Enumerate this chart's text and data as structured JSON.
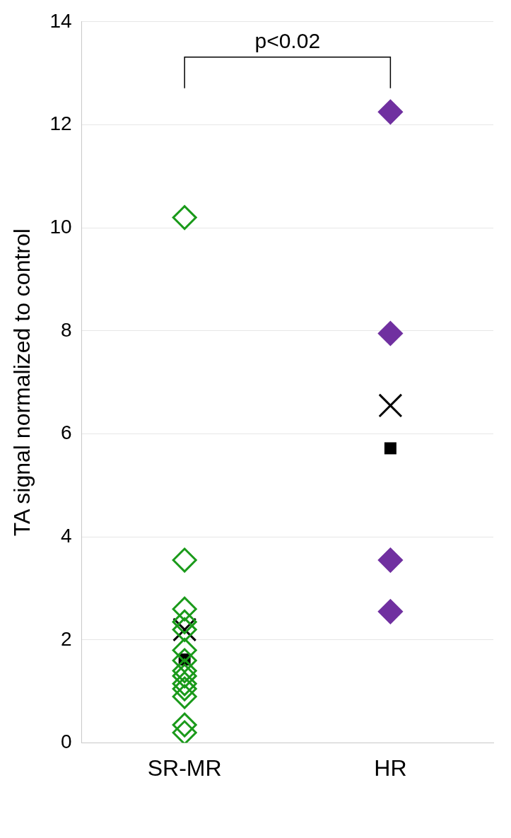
{
  "chart_data": {
    "type": "scatter",
    "categories": [
      "SR-MR",
      "HR"
    ],
    "ylabel": "TA signal normalized to control",
    "ylim": [
      0,
      14
    ],
    "yticks": [
      0,
      2,
      4,
      6,
      8,
      10,
      12,
      14
    ],
    "grid": "y",
    "legend": false,
    "marker": "diamond",
    "annotations": [
      "p<0.02"
    ],
    "series": [
      {
        "color": "#1a9a1a",
        "x": [
          "SR-MR",
          "SR-MR",
          "SR-MR",
          "SR-MR",
          "SR-MR",
          "SR-MR",
          "SR-MR",
          "SR-MR",
          "SR-MR",
          "SR-MR",
          "SR-MR",
          "SR-MR",
          "SR-MR",
          "SR-MR"
        ],
        "values": [
          10.2,
          3.55,
          2.6,
          2.35,
          2.2,
          1.8,
          1.6,
          1.4,
          1.3,
          1.15,
          1.05,
          0.9,
          0.35,
          0.2
        ]
      },
      {
        "color": "#7030a0",
        "x": [
          "HR",
          "HR",
          "HR",
          "HR"
        ],
        "values": [
          12.25,
          7.95,
          3.55,
          2.55
        ]
      },
      {
        "color": "#000000",
        "marker": "cross",
        "x": [
          "SR-MR",
          "HR"
        ],
        "values": [
          2.2,
          6.55
        ]
      },
      {
        "color": "#000000",
        "marker": "square",
        "x": [
          "SR-MR",
          "HR"
        ],
        "values": [
          1.62,
          5.72
        ]
      }
    ]
  }
}
